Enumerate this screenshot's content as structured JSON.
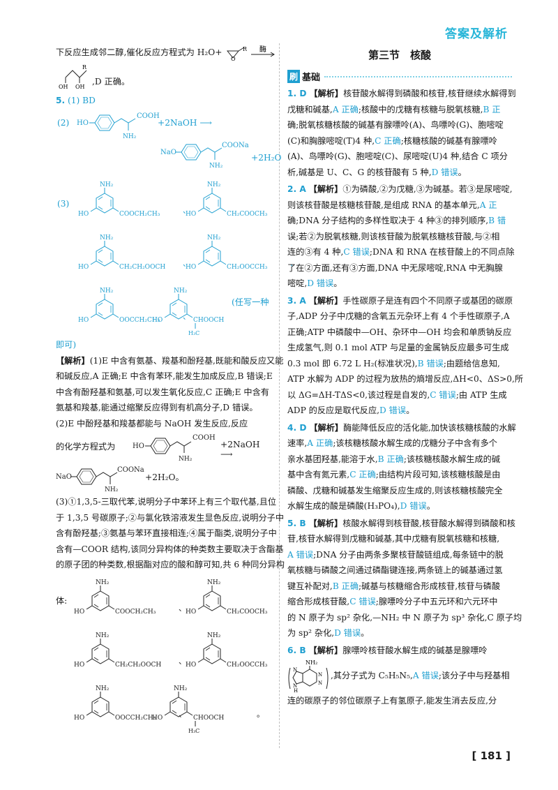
{
  "header": {
    "title": "答案及解析"
  },
  "page_number": "181",
  "left": {
    "l1": "下反应生成邻二醇,催化反应方程式为 H₂O+",
    "l1_cond": "酶",
    "l2_suffix": ",D 正确。",
    "q5_num": "5.",
    "q5_1": "(1) BD",
    "q5_2_label": "(2)",
    "naoh": "+2NaOH ⟶",
    "h2o_tail": "+2H₂O",
    "q5_3_label": "(3)",
    "any_note": "(任写一种",
    "any_note2": "即可)",
    "analysis_tag": "【解析】",
    "p1": [
      "(1)E 中含有氨基、羧基和酚羟基,既能和酸反应又能",
      "和碱反应,A 正确;E 中含有苯环,能发生加成反应,B 错误;E",
      "中含有酚羟基和氨基,可以发生氧化反应,C 正确;E 中含有",
      "氨基和羧基,能通过缩聚反应得到有机高分子,D 错误。"
    ],
    "p2": [
      "(2)E 中酚羟基和羧基都能与 NaOH 发生反应,反应",
      "的化学方程式为"
    ],
    "p2_tail": "+2H₂O。",
    "p3": [
      "(3)①1,3,5-三取代苯,说明分子中苯环上有三个取代基,且位",
      "于 1,3,5 号碳原子;②与氯化铁溶液发生显色反应,说明分子中",
      "含有酚羟基;③氨基与苯环直接相连;④属于酯类,说明分子中",
      "含有—COOR 结构,该同分异构体的种类数主要取决于含酯基",
      "的原子团的种类数,根据酯对应的酸和醇可知,共 6 种同分异构"
    ],
    "p3_body": "体:",
    "period": "。",
    "comma": "、",
    "subs": [
      "COOCH₂CH₃",
      "CH₂COOCH₃",
      "CH₂CH₂OOCH",
      "CH₂OOCCH₃",
      "OOCCH₂CH₃",
      "CHOOCH"
    ],
    "labels": {
      "nh2": "NH₂",
      "ho": "HO",
      "cooh": "COOH",
      "nh2_low": "NH₂",
      "ch3": "H₃C",
      "nao": "NaO",
      "coona": "COONa",
      "oh": "OH",
      "r": "R",
      "o": "O"
    }
  },
  "right": {
    "section_title": "第三节　核酸",
    "basic_tag": "刷",
    "basic_title": "基础",
    "q1": [
      "1. D 【解析】核苷酸水解得到磷酸和核苷,核苷继续水解得到",
      "戊糖和碱基,A 正确;核酸中的戊糖有核糖与脱氧核糖,B 正",
      "确;脱氧核糖核酸的碱基有腺嘌呤(A)、鸟嘌呤(G)、胞嘧啶",
      "(C)和胸腺嘧啶(T)4 种,C 正确;核糖核酸的碱基有腺嘌呤",
      "(A)、鸟嘌呤(G)、胞嘧啶(C)、尿嘧啶(U)4 种,结合 C 项分",
      "析,碱基是 U、C、G 的核苷酸有 5 种,D 错误。"
    ],
    "q2": [
      "2. A 【解析】①为磷酸,②为戊糖,③为碱基。若③是尿嘧啶,",
      "则该核苷酸是核糖核苷酸,是组成 RNA 的基本单元,A 正",
      "确;DNA 分子结构的多样性取决于 4 种③的排列顺序,B 错",
      "误;若②为脱氧核糖,则该核苷酸为脱氧核糖核苷酸,与②相",
      "连的③有 4 种,C 错误;DNA 和 RNA 在核苷酸上的不同点除",
      "了在②方面,还有③方面,DNA 中无尿嘧啶,RNA 中无胸腺",
      "嘧啶,D 错误。"
    ],
    "q3": [
      "3. A 【解析】手性碳原子是连有四个不同原子或基团的碳原",
      "子,ADP 分子中戊糖的含氧五元杂环上有 4 个手性碳原子,A",
      "正确;ATP 中磷酸中—OH、杂环中—OH 均会和单质钠反应",
      "生成氢气,则 0.1 mol ATP 与足量的金属钠反应最多可生成",
      "0.3 mol 即 6.72 L H₂(标准状况),B 错误;由题给信息知,",
      "ATP 水解为 ADP 的过程为放热的熵增反应,ΔH<0、ΔS>0,所",
      "以 ΔG=ΔH-TΔS<0,该过程是自发的,C 错误;由 ATP 生成",
      "ADP 的反应是取代反应,D 错误。"
    ],
    "q4": [
      "4. D 【解析】酶能降低反应的活化能,加快该核糖核酸的水解",
      "速率,A 正确;该核糖核酸水解生成的戊糖分子中含有多个",
      "亲水基团羟基,能溶于水,B 正确;该核糖核酸水解生成的碱",
      "基中含有氮元素,C 正确;由结构片段可知,该核糖核酸是由",
      "磷酸、戊糖和碱基发生缩聚反应生成的,则该核糖核酸完全",
      "水解生成的酸是磷酸(H₃PO₄),D 错误。"
    ],
    "q5": [
      "5. B 【解析】核酸水解得到核苷酸,核苷酸水解得到磷酸和核",
      "苷,核苷水解得到戊糖和碱基,其中戊糖有脱氧核糖和核糖,",
      "A 错误;DNA 分子由两条多聚核苷酸链组成,每条链中的脱",
      "氧核糖与磷酸之间通过磷酯键连接,两条链上的碱基通过氢",
      "键互补配对,B 正确;碱基与核糖缩合形成核苷,核苷与磷酸",
      "缩合形成核苷酸,C 错误;腺嘌呤分子中五元环和六元环中",
      "的 N 原子为 sp² 杂化,—NH₂ 中 N 原子为 sp³ 杂化,C 原子均",
      "为 sp² 杂化,D 错误。"
    ],
    "q6": [
      "6. B 【解析】腺嘌呤核苷酸水解生成的碱基是腺嘌呤",
      ",其分子式为 C₅H₅N₅,A 错误;该分子中与羟基相",
      "连的碳原子的邻位碳原子上有氢原子,能发生消去反应,分"
    ],
    "q6_labels": {
      "nh2": "NH₂",
      "n": "N",
      "h": "H"
    }
  }
}
